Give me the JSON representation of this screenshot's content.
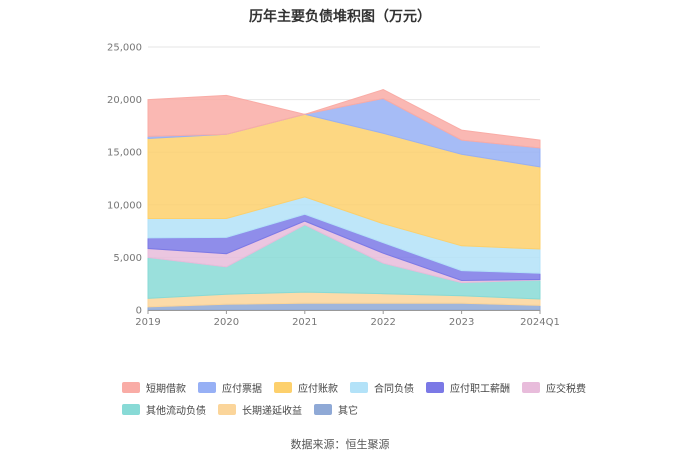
{
  "chart_data": {
    "type": "area",
    "stacked": true,
    "title": "历年主要负债堆积图（万元）",
    "categories": [
      "2019",
      "2020",
      "2021",
      "2022",
      "2023",
      "2024Q1"
    ],
    "yticks": [
      "0",
      "5,000",
      "10,000",
      "15,000",
      "20,000",
      "25,000"
    ],
    "ylim": [
      0,
      25000
    ],
    "legend_position": "bottom",
    "series": [
      {
        "name": "其它",
        "color": "#8fa9d6",
        "values": [
          300,
          550,
          650,
          650,
          650,
          450
        ]
      },
      {
        "name": "长期递延收益",
        "color": "#fbd59a",
        "values": [
          800,
          950,
          1050,
          900,
          700,
          600
        ]
      },
      {
        "name": "其他流动负债",
        "color": "#88dad6",
        "values": [
          3900,
          2600,
          6400,
          2900,
          1250,
          1800
        ]
      },
      {
        "name": "应交税费",
        "color": "#e8bcdb",
        "values": [
          850,
          1250,
          350,
          950,
          200,
          50
        ]
      },
      {
        "name": "应付职工薪酬",
        "color": "#7b79e6",
        "values": [
          1000,
          1550,
          650,
          1000,
          950,
          600
        ]
      },
      {
        "name": "合同负债",
        "color": "#b3e2f8",
        "values": [
          1850,
          1800,
          1650,
          1800,
          2350,
          2300
        ]
      },
      {
        "name": "应付账款",
        "color": "#fdd06c",
        "values": [
          7600,
          8000,
          7850,
          8600,
          8700,
          7800
        ]
      },
      {
        "name": "应付票据",
        "color": "#97b0f5",
        "values": [
          200,
          0,
          0,
          3300,
          1350,
          1800
        ]
      },
      {
        "name": "短期借款",
        "color": "#f9aca6",
        "values": [
          3500,
          3700,
          0,
          850,
          950,
          750
        ]
      }
    ],
    "legend_order": [
      "短期借款",
      "应付票据",
      "应付账款",
      "合同负债",
      "应付职工薪酬",
      "应交税费",
      "其他流动负债",
      "长期递延收益",
      "其它"
    ]
  },
  "source": "数据来源：恒生聚源"
}
